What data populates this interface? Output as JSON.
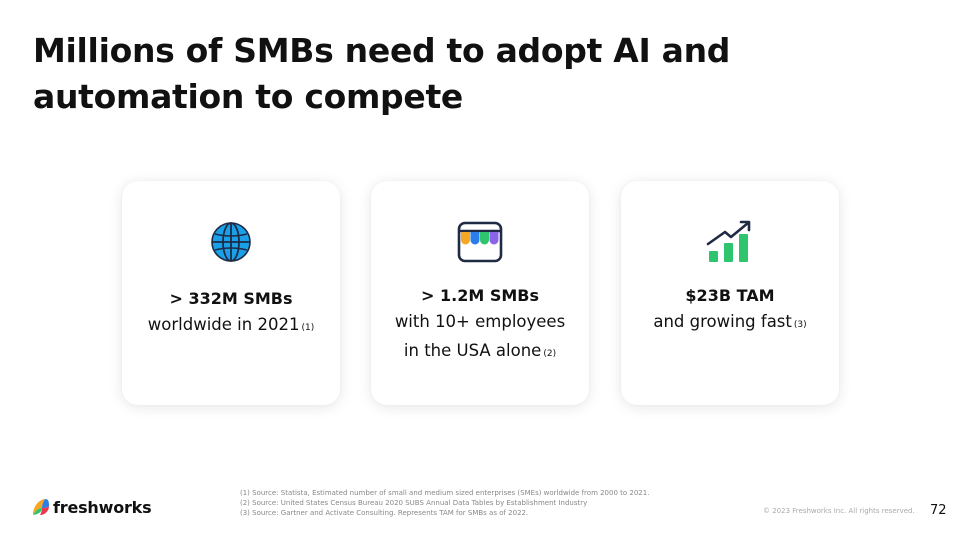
{
  "title": "Millions of SMBs need to adopt AI and automation to compete",
  "cards": [
    {
      "icon": "globe-icon",
      "headline": "> 332M SMBs",
      "lines": [
        "worldwide in 2021"
      ],
      "ref": "(1)"
    },
    {
      "icon": "storefront-icon",
      "headline": "> 1.2M SMBs",
      "lines": [
        "with 10+ employees",
        "in the USA alone"
      ],
      "ref": "(2)"
    },
    {
      "icon": "growth-chart-icon",
      "headline": "$23B TAM",
      "lines": [
        "and growing fast"
      ],
      "ref": "(3)"
    }
  ],
  "footer": {
    "logo_text": "freshworks",
    "sources": [
      "(1) Source: Statista, Estimated number of small and medium sized enterprises (SMEs) worldwide from 2000 to 2021.",
      "(2) Source: United States Census Bureau 2020 SUBS Annual Data Tables by Establishment Industry",
      "(3) Source: Gartner and Activate Consulting. Represents TAM for SMBs as of 2022."
    ],
    "copyright": "© 2023 Freshworks Inc. All rights reserved.",
    "page_number": "72"
  },
  "colors": {
    "globe_blue": "#1aa0e8",
    "awning_orange": "#f5a623",
    "awning_blue": "#2b7de9",
    "awning_green": "#2fc46e",
    "awning_purple": "#8a63e8",
    "chart_green": "#2fc46e",
    "arrow_navy": "#1f2a44"
  }
}
